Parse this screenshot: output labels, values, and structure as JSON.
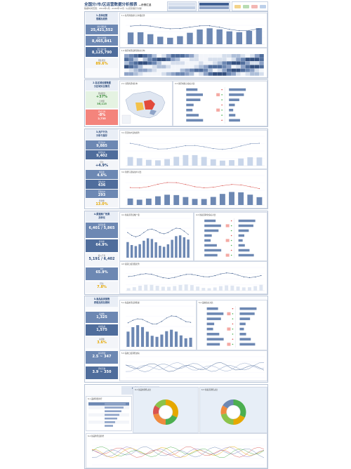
{
  "header": {
    "title": "全国分/市/区运营数据分析报表",
    "title_suffix": "—示例汇总",
    "subtitle": "数据时间范围：2019年1月—2020年12月（以实际展示为准）"
  },
  "filters": {
    "segments": [
      "时间",
      "区域",
      "渠道"
    ]
  },
  "section1": {
    "heading": "1.总体经营\n规模及趋势",
    "kpis": [
      {
        "label": "累计销售额",
        "value": "25,421,552"
      },
      {
        "label": "累计订单量",
        "value": "8,465,841"
      },
      {
        "label": "累计用户数",
        "value": "8,125,790"
      },
      {
        "label": "同比增长",
        "value": "89.6%"
      }
    ],
    "chart1_title": "1.1 各月销售额与订单量走势",
    "chart2_title": "1.2 各区域月度经营热力分布"
  },
  "section2": {
    "heading": "2.各区域经营数据\n分区域对比情况",
    "kpis": [
      {
        "label": "区域增长",
        "value": "+37%",
        "value2": "日均量",
        "value3": "36,115"
      },
      {
        "label": "区域下降",
        "value": "-8%",
        "value2": "",
        "value3": "2,735"
      }
    ],
    "map_title": "2.1 全国各区域分布",
    "chart_title": "2.2 各区域核心指标对比"
  },
  "section3": {
    "heading": "3.用户行为\n分析与留存",
    "kpis": [
      {
        "label": "月活用户",
        "value": "9,885"
      },
      {
        "label": "新增用户",
        "value": "9,402"
      },
      {
        "label": "环比",
        "value": "+4.9%"
      },
      {
        "label": "留存率",
        "value": "4.6%"
      },
      {
        "label": "流失用户",
        "value": "436"
      },
      {
        "label": "回流用户",
        "value": "293"
      },
      {
        "label": "转化率",
        "value": "13.0%"
      }
    ],
    "chart1_title": "3.1 月活用户变化趋势",
    "chart2_title": "3.2 新增与流失用户对比"
  },
  "section4": {
    "heading": "4.渠道推广效果\n及转化",
    "kpis": [
      {
        "label": "渠道总量",
        "value": "6,401 / 5,865"
      },
      {
        "label": "转化率",
        "value": "64.9%"
      },
      {
        "label": "投入产出",
        "value": "5,191 / 6,402"
      },
      {
        "label": "ROI",
        "value": "65.9%"
      },
      {
        "label": "环比",
        "value": "7.8%"
      }
    ],
    "chart1_title": "4.1 各渠道月度推广量",
    "chart2_title": "4.2 各渠道转化指标对比",
    "chart3_title": "4.3 渠道日度流量走势"
  },
  "section5": {
    "heading": "5.商品品类销售\n表现及库存周转",
    "kpis": [
      {
        "label": "品类数",
        "value": "1,325"
      },
      {
        "label": "动销品类",
        "value": "1,575"
      },
      {
        "label": "动销率",
        "value": "3.6%"
      },
      {
        "label": "库存周转",
        "value": "2.5 ~ 347"
      },
      {
        "label": "周转天数",
        "value": "3.9 ~ 350"
      }
    ],
    "chart1_title": "5.1 各品类月度销售额",
    "chart2_title": "5.2 品类指标对比",
    "chart3_title": "5.3 品类日度销售波动"
  },
  "section6": {
    "heading": "6.品牌/品类构成\n分析",
    "table_title": "6.1 品牌销售排行",
    "donut1_title": "6.2 各品类销售占比",
    "donut2_title": "6.3 各渠道销售占比",
    "line_title": "6.4 各品牌月度趋势"
  },
  "colors": {
    "kpi": "#6d88b3",
    "kpi_dark": "#4f6d9c",
    "bar": "#6d88b3",
    "accent_yellow": "#e6a800",
    "accent_red": "#d9534f",
    "accent_green": "#4caf50"
  }
}
